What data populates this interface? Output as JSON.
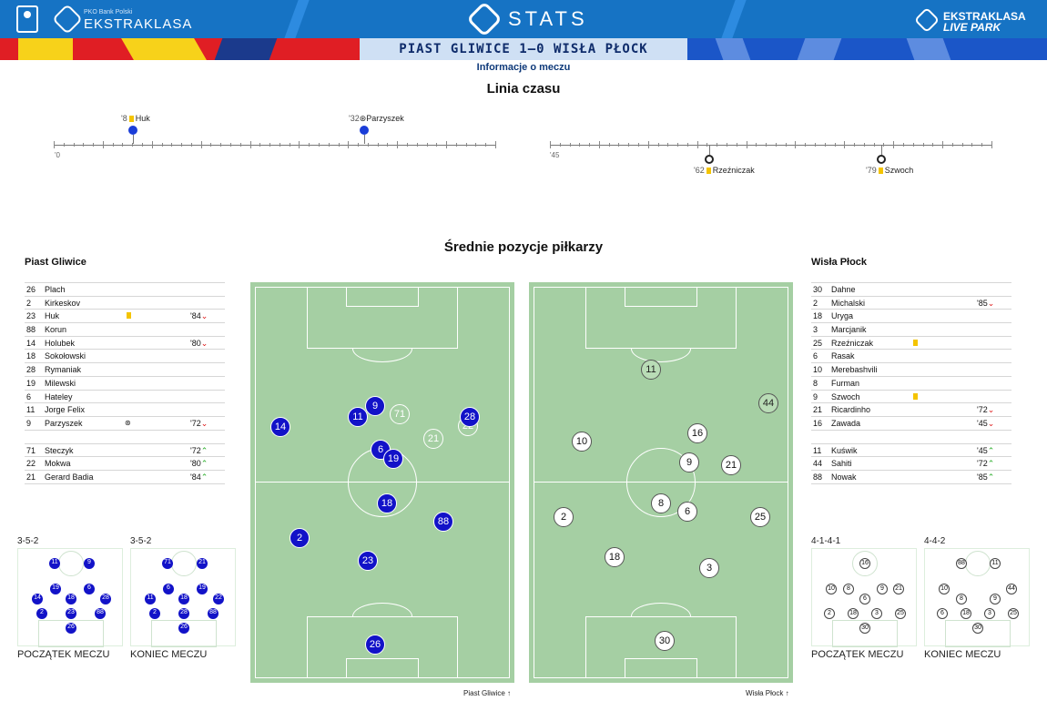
{
  "header": {
    "small_brand": "PKO Bank Polski",
    "brand": "EKSTRAKLASA",
    "stats": "STATS",
    "live1": "EKSTRAKLASA",
    "live2": "LIVE PARK"
  },
  "match": {
    "title": "PIAST GLIWICE 1–0 WISŁA PŁOCK",
    "subtitle": "Informacje o meczu"
  },
  "timeline": {
    "title": "Linia czasu",
    "first_half_label": "'0",
    "second_half_label": "'45",
    "events": [
      {
        "minute": "'8",
        "type": "yellow",
        "player": "Huk",
        "team": "home"
      },
      {
        "minute": "'32",
        "type": "goal",
        "player": "Parzyszek",
        "team": "home"
      },
      {
        "minute": "'62",
        "type": "yellow",
        "player": "Rzeźniczak",
        "team": "away"
      },
      {
        "minute": "'79",
        "type": "yellow",
        "player": "Szwoch",
        "team": "away"
      }
    ]
  },
  "positions_title": "Średnie pozycje piłkarzy",
  "home": {
    "name": "Piast Gliwice",
    "lineup": [
      {
        "n": "26",
        "name": "Plach",
        "icon": "",
        "sub": "",
        "dir": ""
      },
      {
        "n": "2",
        "name": "Kirkeskov",
        "icon": "",
        "sub": "",
        "dir": ""
      },
      {
        "n": "23",
        "name": "Huk",
        "icon": "yellow",
        "sub": "'84",
        "dir": "down"
      },
      {
        "n": "88",
        "name": "Korun",
        "icon": "",
        "sub": "",
        "dir": ""
      },
      {
        "n": "14",
        "name": "Holubek",
        "icon": "",
        "sub": "'80",
        "dir": "down"
      },
      {
        "n": "18",
        "name": "Sokołowski",
        "icon": "",
        "sub": "",
        "dir": ""
      },
      {
        "n": "28",
        "name": "Rymaniak",
        "icon": "",
        "sub": "",
        "dir": ""
      },
      {
        "n": "19",
        "name": "Milewski",
        "icon": "",
        "sub": "",
        "dir": ""
      },
      {
        "n": "6",
        "name": "Hateley",
        "icon": "",
        "sub": "",
        "dir": ""
      },
      {
        "n": "11",
        "name": "Jorge Felix",
        "icon": "",
        "sub": "",
        "dir": ""
      },
      {
        "n": "9",
        "name": "Parzyszek",
        "icon": "goal",
        "sub": "'72",
        "dir": "down"
      }
    ],
    "subs": [
      {
        "n": "71",
        "name": "Steczyk",
        "sub": "'72",
        "dir": "up"
      },
      {
        "n": "22",
        "name": "Mokwa",
        "sub": "'80",
        "dir": "up"
      },
      {
        "n": "21",
        "name": "Gerard Badia",
        "sub": "'84",
        "dir": "up"
      }
    ],
    "formation_start": "3-5-2",
    "formation_end": "3-5-2",
    "caption_start": "POCZĄTEK MECZU",
    "caption_end": "KONIEC MECZU",
    "pitch_label": "Piast Gliwice"
  },
  "away": {
    "name": "Wisła Płock",
    "lineup": [
      {
        "n": "30",
        "name": "Dahne",
        "icon": "",
        "sub": "",
        "dir": ""
      },
      {
        "n": "2",
        "name": "Michalski",
        "icon": "",
        "sub": "'85",
        "dir": "down"
      },
      {
        "n": "18",
        "name": "Uryga",
        "icon": "",
        "sub": "",
        "dir": ""
      },
      {
        "n": "3",
        "name": "Marcjanik",
        "icon": "",
        "sub": "",
        "dir": ""
      },
      {
        "n": "25",
        "name": "Rzeźniczak",
        "icon": "yellow",
        "sub": "",
        "dir": ""
      },
      {
        "n": "6",
        "name": "Rasak",
        "icon": "",
        "sub": "",
        "dir": ""
      },
      {
        "n": "10",
        "name": "Merebashvili",
        "icon": "",
        "sub": "",
        "dir": ""
      },
      {
        "n": "8",
        "name": "Furman",
        "icon": "",
        "sub": "",
        "dir": ""
      },
      {
        "n": "9",
        "name": "Szwoch",
        "icon": "yellow",
        "sub": "",
        "dir": ""
      },
      {
        "n": "21",
        "name": "Ricardinho",
        "icon": "",
        "sub": "'72",
        "dir": "down"
      },
      {
        "n": "16",
        "name": "Zawada",
        "icon": "",
        "sub": "'45",
        "dir": "down"
      }
    ],
    "subs": [
      {
        "n": "11",
        "name": "Kuświk",
        "sub": "'45",
        "dir": "up"
      },
      {
        "n": "44",
        "name": "Sahiti",
        "sub": "'72",
        "dir": "up"
      },
      {
        "n": "88",
        "name": "Nowak",
        "sub": "'85",
        "dir": "up"
      }
    ],
    "formation_start": "4-1-4-1",
    "formation_end": "4-4-2",
    "caption_start": "POCZĄTEK MECZU",
    "caption_end": "KONIEC MECZU",
    "pitch_label": "Wisła Płock"
  },
  "colors": {
    "home": "#1212c8",
    "pitch": "#a5cfa3",
    "brand": "#1673c4"
  }
}
